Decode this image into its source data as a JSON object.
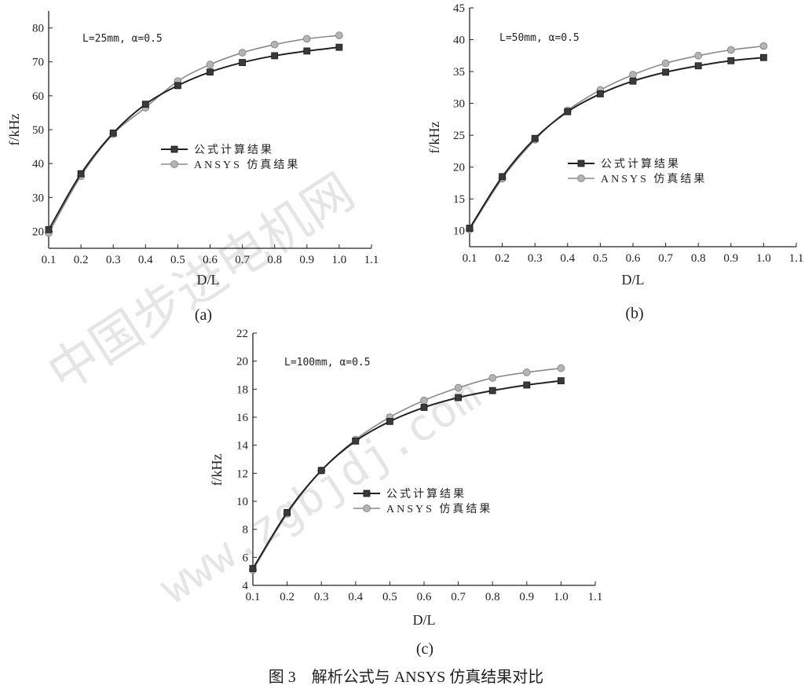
{
  "watermark": {
    "text1": "中国步进电机网",
    "text2": "www.zgbjdj.com"
  },
  "figure_caption": "图 3　解析公式与 ANSYS 仿真结果对比",
  "chart_data": [
    {
      "type": "line",
      "panel_label": "(a)",
      "annotation": "L=25mm, α=0.5",
      "xlabel": "D/L",
      "ylabel": "f/kHz",
      "xlim": [
        0.1,
        1.1
      ],
      "ylim": [
        15,
        85
      ],
      "xticks": [
        0.1,
        0.2,
        0.3,
        0.4,
        0.5,
        0.6,
        0.7,
        0.8,
        0.9,
        1.0,
        1.1
      ],
      "yticks": [
        20,
        30,
        40,
        50,
        60,
        70,
        80
      ],
      "legend_position": "center-right",
      "x": [
        0.1,
        0.2,
        0.3,
        0.4,
        0.5,
        0.6,
        0.7,
        0.8,
        0.9,
        1.0
      ],
      "series": [
        {
          "name": "公式计算结果",
          "values": [
            20.5,
            37,
            49,
            57.5,
            63,
            67,
            69.8,
            71.8,
            73.2,
            74.3
          ],
          "color": "#222222",
          "marker": "square"
        },
        {
          "name": "ANSYS 仿真结果",
          "values": [
            19.5,
            36.3,
            48.7,
            56.5,
            64.3,
            69.2,
            72.7,
            75.1,
            76.8,
            77.8
          ],
          "color": "#8a8a8a",
          "marker": "circle"
        }
      ]
    },
    {
      "type": "line",
      "panel_label": "(b)",
      "annotation": "L=50mm, α=0.5",
      "xlabel": "D/L",
      "ylabel": "f/kHz",
      "xlim": [
        0.1,
        1.1
      ],
      "ylim": [
        7.5,
        45
      ],
      "xticks": [
        0.1,
        0.2,
        0.3,
        0.4,
        0.5,
        0.6,
        0.7,
        0.8,
        0.9,
        1.0,
        1.1
      ],
      "yticks": [
        10,
        15,
        20,
        25,
        30,
        35,
        40,
        45
      ],
      "legend_position": "center-right",
      "x": [
        0.1,
        0.2,
        0.3,
        0.4,
        0.5,
        0.6,
        0.7,
        0.8,
        0.9,
        1.0
      ],
      "series": [
        {
          "name": "公式计算结果",
          "values": [
            10.4,
            18.5,
            24.5,
            28.7,
            31.5,
            33.5,
            34.9,
            35.9,
            36.7,
            37.2
          ],
          "color": "#222222",
          "marker": "square"
        },
        {
          "name": "ANSYS 仿真结果",
          "values": [
            10.2,
            18.2,
            24.3,
            28.9,
            32.1,
            34.5,
            36.3,
            37.5,
            38.4,
            39.0
          ],
          "color": "#8a8a8a",
          "marker": "circle"
        }
      ]
    },
    {
      "type": "line",
      "panel_label": "(c)",
      "annotation": "L=100mm, α=0.5",
      "xlabel": "D/L",
      "ylabel": "f/kHz",
      "xlim": [
        0.1,
        1.1
      ],
      "ylim": [
        4,
        22
      ],
      "xticks": [
        0.1,
        0.2,
        0.3,
        0.4,
        0.5,
        0.6,
        0.7,
        0.8,
        0.9,
        1.0,
        1.1
      ],
      "yticks": [
        4,
        6,
        8,
        10,
        12,
        14,
        16,
        18,
        20,
        22
      ],
      "legend_position": "center-right",
      "x": [
        0.1,
        0.2,
        0.3,
        0.4,
        0.5,
        0.6,
        0.7,
        0.8,
        0.9,
        1.0
      ],
      "series": [
        {
          "name": "公式计算结果",
          "values": [
            5.2,
            9.2,
            12.2,
            14.3,
            15.7,
            16.7,
            17.4,
            17.9,
            18.3,
            18.6
          ],
          "color": "#222222",
          "marker": "square"
        },
        {
          "name": "ANSYS 仿真结果",
          "values": [
            5.1,
            9.1,
            12.2,
            14.4,
            16.0,
            17.2,
            18.1,
            18.8,
            19.2,
            19.5
          ],
          "color": "#8a8a8a",
          "marker": "circle"
        }
      ]
    }
  ]
}
